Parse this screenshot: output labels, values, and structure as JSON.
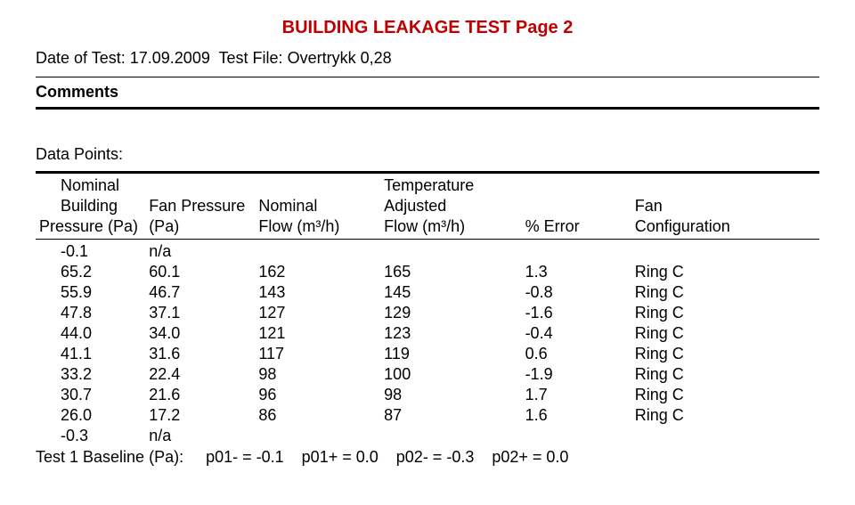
{
  "title": "BUILDING LEAKAGE TEST   Page 2",
  "meta": {
    "date_label": "Date of Test:",
    "date_value": "17.09.2009",
    "file_label": "Test File:",
    "file_value": "Overtrykk 0,28"
  },
  "comments_label": "Comments",
  "data_points_label": "Data Points:",
  "header": {
    "r1": {
      "c0": "Nominal",
      "c3": "Temperature"
    },
    "r2": {
      "c0": "Building",
      "c1": "Fan Pressure",
      "c2": "Nominal",
      "c3": "Adjusted",
      "c5": "Fan"
    },
    "r3": {
      "c0": "Pressure (Pa)",
      "c1": "(Pa)",
      "c2": "Flow (m³/h)",
      "c3": "Flow (m³/h)",
      "c4": "% Error",
      "c5": "Configuration"
    }
  },
  "rows": [
    {
      "c0": "-0.1",
      "c1": "n/a",
      "c2": "",
      "c3": "",
      "c4": "",
      "c5": ""
    },
    {
      "c0": "65.2",
      "c1": "60.1",
      "c2": "162",
      "c3": "165",
      "c4": "1.3",
      "c5": "Ring C"
    },
    {
      "c0": "55.9",
      "c1": "46.7",
      "c2": "143",
      "c3": "145",
      "c4": "-0.8",
      "c5": "Ring C"
    },
    {
      "c0": "47.8",
      "c1": "37.1",
      "c2": "127",
      "c3": "129",
      "c4": "-1.6",
      "c5": "Ring C"
    },
    {
      "c0": "44.0",
      "c1": "34.0",
      "c2": "121",
      "c3": "123",
      "c4": "-0.4",
      "c5": "Ring C"
    },
    {
      "c0": "41.1",
      "c1": "31.6",
      "c2": "117",
      "c3": "119",
      "c4": "0.6",
      "c5": "Ring C"
    },
    {
      "c0": "33.2",
      "c1": "22.4",
      "c2": "98",
      "c3": "100",
      "c4": "-1.9",
      "c5": "Ring C"
    },
    {
      "c0": "30.7",
      "c1": "21.6",
      "c2": "96",
      "c3": "98",
      "c4": "1.7",
      "c5": "Ring C"
    },
    {
      "c0": "26.0",
      "c1": "17.2",
      "c2": "86",
      "c3": "87",
      "c4": "1.6",
      "c5": "Ring C"
    },
    {
      "c0": "-0.3",
      "c1": "n/a",
      "c2": "",
      "c3": "",
      "c4": "",
      "c5": ""
    }
  ],
  "baseline": {
    "label": "Test 1   Baseline (Pa):",
    "p01m": "p01- = -0.1",
    "p01p": "p01+ = 0.0",
    "p02m": "p02- = -0.3",
    "p02p": "p02+ = 0.0"
  },
  "colors": {
    "title": "#c00000",
    "text": "#000000",
    "bg": "#ffffff"
  }
}
